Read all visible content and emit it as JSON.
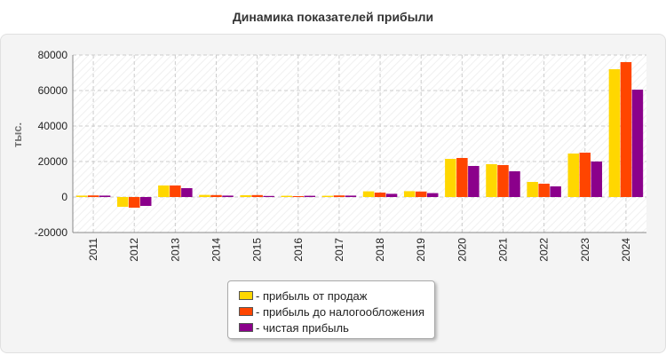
{
  "chart_data": {
    "type": "bar",
    "title": "Динамика показателей прибыли",
    "ylabel": "тыс.",
    "xlabel": "",
    "ylim": [
      -20000,
      80000
    ],
    "yticks": [
      "-20000",
      "0",
      "20000",
      "40000",
      "60000",
      "80000"
    ],
    "grid": true,
    "legend_position": "bottom-center",
    "categories": [
      "2011",
      "2012",
      "2013",
      "2014",
      "2015",
      "2016",
      "2017",
      "2018",
      "2019",
      "2020",
      "2021",
      "2022",
      "2023",
      "2024"
    ],
    "series": [
      {
        "name": "- прибыль от продаж",
        "color": "#ffd700",
        "values": [
          800,
          -5500,
          6500,
          1200,
          1000,
          700,
          700,
          3200,
          3300,
          21500,
          18500,
          8500,
          24500,
          72000
        ]
      },
      {
        "name": "- прибыль до налогообложения",
        "color": "#ff4500",
        "values": [
          900,
          -6000,
          6500,
          1100,
          1100,
          500,
          900,
          2500,
          3100,
          22000,
          18000,
          7500,
          25000,
          76000
        ]
      },
      {
        "name": "- чистая прибыль",
        "color": "#8b008b",
        "values": [
          800,
          -5000,
          5000,
          800,
          600,
          700,
          800,
          1800,
          2200,
          17500,
          14500,
          6000,
          20000,
          60500
        ]
      }
    ]
  }
}
